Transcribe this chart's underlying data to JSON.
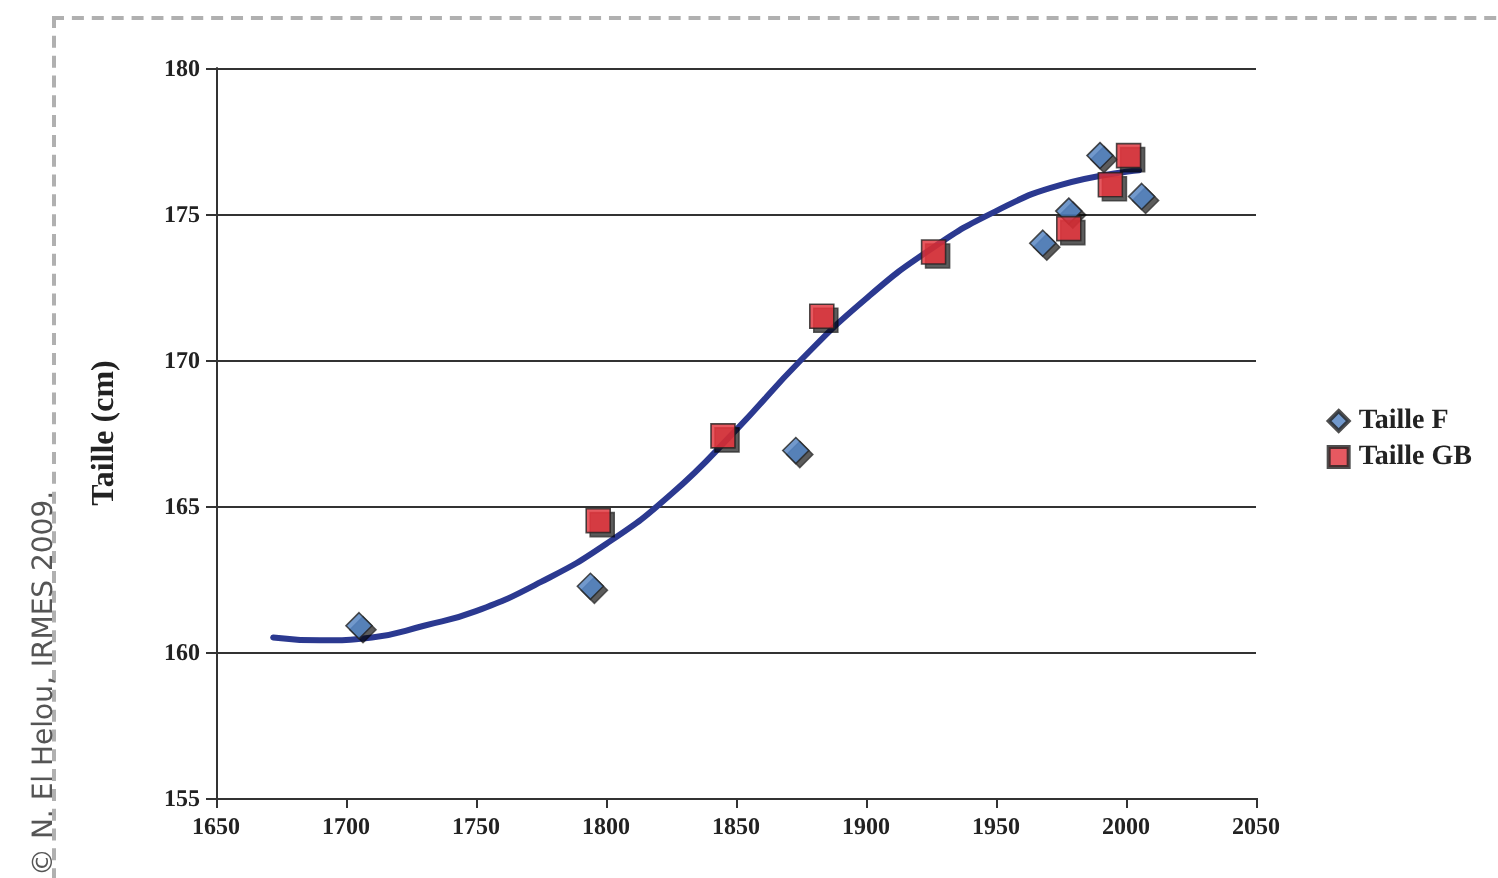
{
  "chart_data": {
    "type": "scatter",
    "ylabel": "Taille (cm)",
    "xlim": [
      1650,
      2050
    ],
    "xticks": [
      1650,
      1700,
      1750,
      1800,
      1850,
      1900,
      1950,
      2000,
      2050
    ],
    "ylim": [
      155,
      180
    ],
    "yticks": [
      155,
      160,
      165,
      170,
      175,
      180
    ],
    "grid": "y",
    "legend": "right",
    "annotations": [
      "© N. El Helou, IRMES 2009."
    ],
    "series": [
      {
        "name": "Taille F",
        "color": "#4f7fbf",
        "marker": "diamond",
        "x": [
          1705,
          1794,
          1873,
          1968,
          1978,
          1990,
          2006
        ],
        "values": [
          160.9,
          162.25,
          166.9,
          174.0,
          175.1,
          177.0,
          175.6
        ]
      },
      {
        "name": "Taille GB",
        "color": "#e0303a",
        "marker": "square",
        "x": [
          1797,
          1845,
          1883,
          1926,
          1978,
          1994,
          2001
        ],
        "values": [
          164.5,
          167.4,
          171.5,
          173.7,
          174.5,
          176.0,
          177.0
        ]
      },
      {
        "type": "line",
        "color": "#2b3990",
        "marker": "none",
        "x": [
          1672,
          1690,
          1710,
          1730,
          1750,
          1775,
          1800,
          1825,
          1850,
          1875,
          1900,
          1925,
          1950,
          1975,
          2005
        ],
        "values": [
          160.5,
          160.4,
          160.5,
          160.9,
          161.4,
          162.4,
          163.7,
          165.4,
          167.6,
          170.0,
          172.1,
          173.8,
          175.1,
          176.0,
          176.5
        ]
      }
    ]
  }
}
